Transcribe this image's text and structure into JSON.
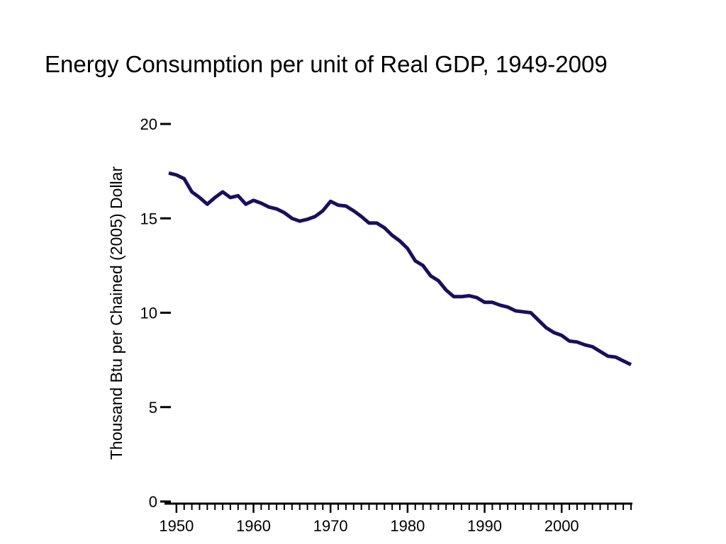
{
  "slide": {
    "title": "Energy Consumption per unit of Real GDP, 1949-2009"
  },
  "colors": {
    "line": "#1a0f5c",
    "axis": "#000000"
  },
  "chart_data": {
    "type": "line",
    "title": "Energy Consumption per unit of Real GDP, 1949-2009",
    "xlabel": "",
    "ylabel": "Thousand Btu per Chained (2005) Dollar",
    "xlim": [
      1949,
      2009
    ],
    "ylim": [
      0,
      20
    ],
    "x_tick_labels": [
      "1950",
      "1960",
      "1970",
      "1980",
      "1990",
      "2000"
    ],
    "y_tick_labels": [
      "0",
      "5",
      "10",
      "15",
      "20"
    ],
    "grid": false,
    "legend": "none",
    "series": [
      {
        "x": [
          1949,
          1950,
          1951,
          1952,
          1953,
          1954,
          1955,
          1956,
          1957,
          1958,
          1959,
          1960,
          1961,
          1962,
          1963,
          1964,
          1965,
          1966,
          1967,
          1968,
          1969,
          1970,
          1971,
          1972,
          1973,
          1974,
          1975,
          1976,
          1977,
          1978,
          1979,
          1980,
          1981,
          1982,
          1983,
          1984,
          1985,
          1986,
          1987,
          1988,
          1989,
          1990,
          1991,
          1992,
          1993,
          1994,
          1995,
          1996,
          1997,
          1998,
          1999,
          2000,
          2001,
          2002,
          2003,
          2004,
          2005,
          2006,
          2007,
          2008,
          2009
        ],
        "y": [
          17.4,
          17.3,
          17.1,
          16.4,
          16.1,
          15.75,
          16.1,
          16.4,
          16.1,
          16.2,
          15.75,
          15.95,
          15.8,
          15.6,
          15.5,
          15.3,
          15.0,
          14.85,
          14.95,
          15.1,
          15.4,
          15.9,
          15.7,
          15.65,
          15.4,
          15.1,
          14.75,
          14.75,
          14.5,
          14.1,
          13.8,
          13.4,
          12.75,
          12.5,
          11.95,
          11.7,
          11.2,
          10.85,
          10.85,
          10.9,
          10.8,
          10.55,
          10.55,
          10.4,
          10.3,
          10.1,
          10.05,
          10.0,
          9.6,
          9.2,
          8.95,
          8.8,
          8.5,
          8.45,
          8.3,
          8.2,
          7.95,
          7.7,
          7.65,
          7.45,
          7.25
        ]
      }
    ]
  }
}
